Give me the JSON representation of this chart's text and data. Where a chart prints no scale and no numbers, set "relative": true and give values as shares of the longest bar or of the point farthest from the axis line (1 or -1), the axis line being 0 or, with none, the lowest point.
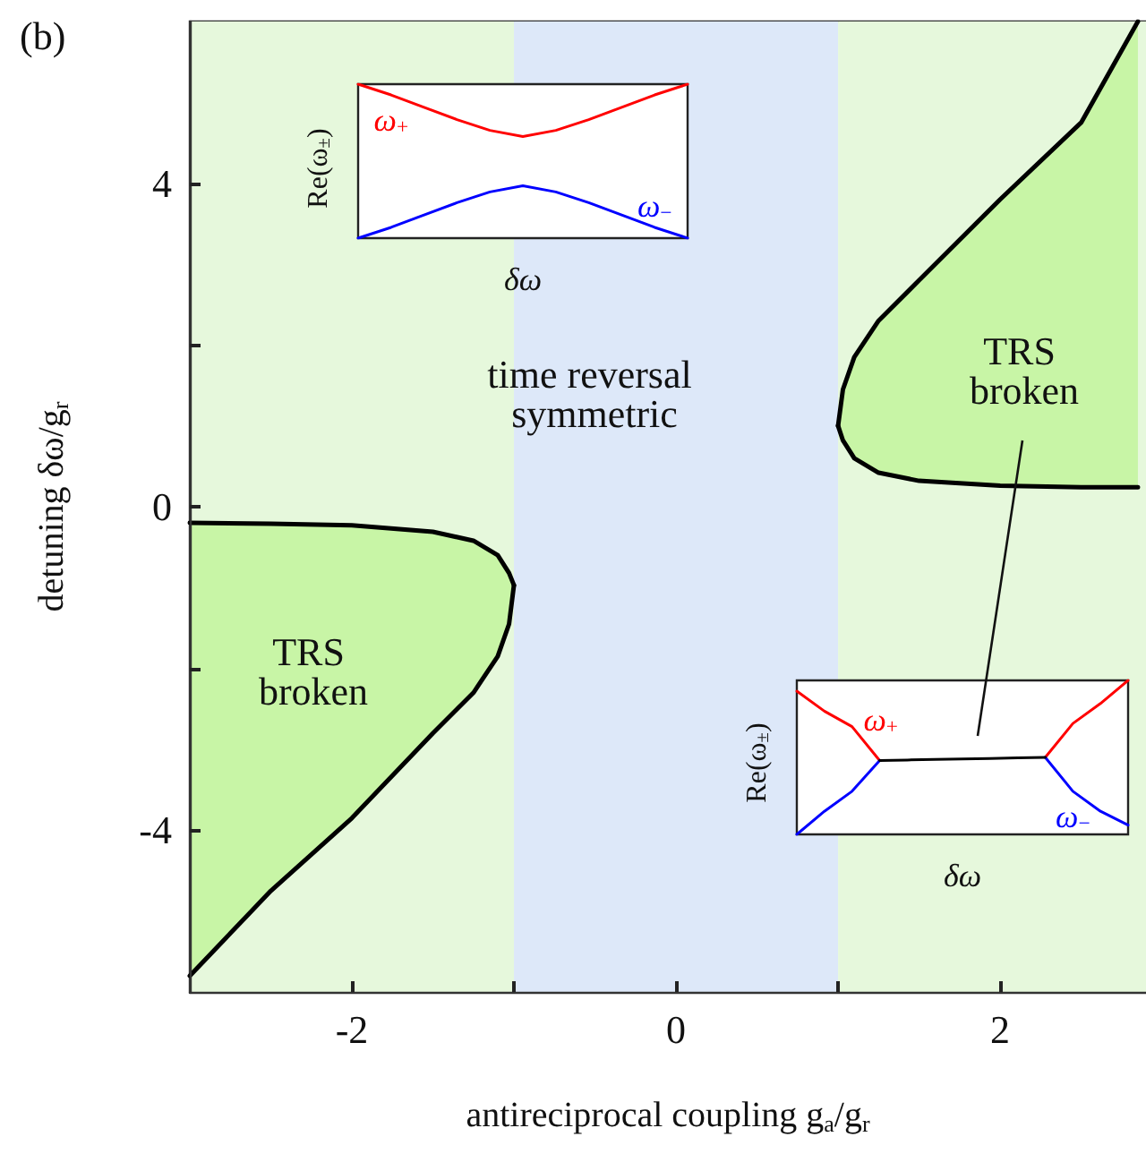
{
  "chart_data": [
    {
      "type": "line",
      "title": "(b)",
      "xlabel": "antireciprocal coupling g$_{a}$/g$_{r}$",
      "ylabel": "detuning δω/g$_{r}$",
      "xlim": [
        -3,
        2.9
      ],
      "ylim": [
        -6,
        6
      ],
      "xticks": [
        -2,
        {
          "value": -1,
          "label": null
        },
        0,
        {
          "value": 1,
          "label": null
        },
        2
      ],
      "yticks": [
        -4,
        {
          "value": -2,
          "label": null
        },
        0,
        {
          "value": 2,
          "label": null
        },
        4
      ],
      "grid": false,
      "legend": false,
      "bands": [
        {
          "axis": "x",
          "from": -3,
          "to": -1,
          "color": "#e6f8dc"
        },
        {
          "axis": "x",
          "from": -1,
          "to": 1,
          "color": "#dde8f9"
        },
        {
          "axis": "x",
          "from": 1,
          "to": 2.9,
          "color": "#e6f8dc"
        }
      ],
      "series": [
        {
          "color": "#000000",
          "x": [
            -3,
            -2.5,
            -2,
            -1.5,
            -1.25,
            -1.1,
            -1.03,
            -1
          ],
          "values": [
            -0.2,
            -0.21,
            -0.23,
            -0.31,
            -0.42,
            -0.6,
            -0.82,
            -0.97
          ],
          "lower": [
            -5.8,
            -4.75,
            -3.85,
            -2.8,
            -2.3,
            -1.85,
            -1.45,
            -0.97
          ],
          "upper": [
            -0.2,
            -0.21,
            -0.23,
            -0.31,
            -0.42,
            -0.6,
            -0.82,
            -0.97
          ]
        },
        {
          "color": "#000000",
          "x": [
            -3,
            -2.5,
            -2,
            -1.5,
            -1.25,
            -1.1,
            -1.03,
            -1
          ],
          "values": [
            -5.8,
            -4.75,
            -3.85,
            -2.8,
            -2.3,
            -1.85,
            -1.45,
            -0.97
          ]
        },
        {
          "color": "#000000",
          "x": [
            1,
            1.03,
            1.1,
            1.25,
            1.5,
            2,
            2.5,
            2.85
          ],
          "values": [
            1,
            1.45,
            1.85,
            2.3,
            2.8,
            3.8,
            4.75,
            6
          ],
          "lower": [
            1,
            0.82,
            0.6,
            0.42,
            0.32,
            0.26,
            0.24,
            0.24
          ],
          "upper": [
            1,
            1.45,
            1.85,
            2.3,
            2.8,
            3.8,
            4.75,
            6
          ]
        },
        {
          "color": "#000000",
          "x": [
            1,
            1.03,
            1.1,
            1.25,
            1.5,
            2,
            2.5,
            2.85
          ],
          "values": [
            1,
            0.82,
            0.6,
            0.42,
            0.32,
            0.26,
            0.24,
            0.24
          ]
        }
      ],
      "annotations": [
        "time reversal symmetric",
        "TRS broken",
        "TRS broken"
      ]
    },
    {
      "type": "line",
      "relative": true,
      "xlabel": "δω",
      "ylabel": "Re(ω$_{±}$)",
      "legend": false,
      "marker": "none",
      "categories": [
        null,
        null,
        null,
        null,
        null,
        null,
        null,
        null,
        null,
        null,
        null
      ],
      "series": [
        {
          "name": "ω$_{+}$",
          "color": "#ff0000",
          "values": [
            1,
            0.93,
            0.85,
            0.77,
            0.7,
            0.66,
            0.7,
            0.77,
            0.85,
            0.93,
            1
          ]
        },
        {
          "name": "ω$_{−}$",
          "color": "#0000ff",
          "values": [
            0,
            0.07,
            0.15,
            0.23,
            0.3,
            0.34,
            0.3,
            0.23,
            0.15,
            0.07,
            0
          ]
        }
      ]
    },
    {
      "type": "line",
      "relative": true,
      "xlabel": "δω",
      "ylabel": "Re(ω$_{±}$)",
      "legend": false,
      "marker": "none",
      "categories": [
        null,
        null,
        null,
        null,
        null,
        null,
        null,
        null,
        null,
        null,
        null,
        null,
        null
      ],
      "series": [
        {
          "name": "ω$_{+}$",
          "color": "#ff0000",
          "values": [
            0.93,
            0.8,
            0.7,
            0.48,
            null,
            null,
            null,
            null,
            null,
            0.5,
            0.72,
            0.85,
            1
          ]
        },
        {
          "name": "ω$_{−}$",
          "color": "#0000ff",
          "values": [
            0,
            0.15,
            0.28,
            0.48,
            null,
            null,
            null,
            null,
            null,
            0.5,
            0.28,
            0.15,
            0.06
          ]
        },
        {
          "color": "#000000",
          "values": [
            null,
            null,
            null,
            0.48,
            0.483,
            0.487,
            0.49,
            0.493,
            0.497,
            0.5,
            null,
            null,
            null
          ]
        }
      ]
    }
  ]
}
